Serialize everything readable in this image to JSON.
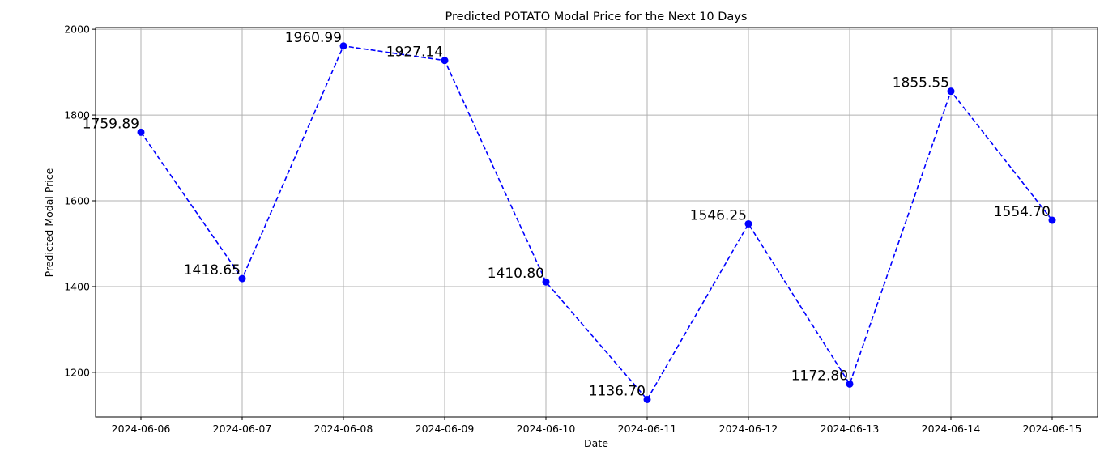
{
  "chart_data": {
    "type": "line",
    "title": "Predicted POTATO Modal Price for the Next 10 Days",
    "xlabel": "Date",
    "ylabel": "Predicted Modal Price",
    "categories": [
      "2024-06-06",
      "2024-06-07",
      "2024-06-08",
      "2024-06-09",
      "2024-06-10",
      "2024-06-11",
      "2024-06-12",
      "2024-06-13",
      "2024-06-14",
      "2024-06-15"
    ],
    "series": [
      {
        "values": [
          1759.89,
          1418.65,
          1960.99,
          1927.14,
          1410.8,
          1136.7,
          1546.25,
          1172.8,
          1855.55,
          1554.7
        ],
        "point_labels": [
          "1759.89",
          "1418.65",
          "1960.99",
          "1927.14",
          "1410.80",
          "1136.70",
          "1546.25",
          "1172.80",
          "1855.55",
          "1554.70"
        ],
        "color": "#0000ff",
        "line_style": "dashed",
        "marker": "circle"
      }
    ],
    "ylim": [
      1096,
      2004
    ],
    "yticks": [
      1200,
      1400,
      1600,
      1800,
      2000
    ],
    "grid": true,
    "legend": false
  }
}
